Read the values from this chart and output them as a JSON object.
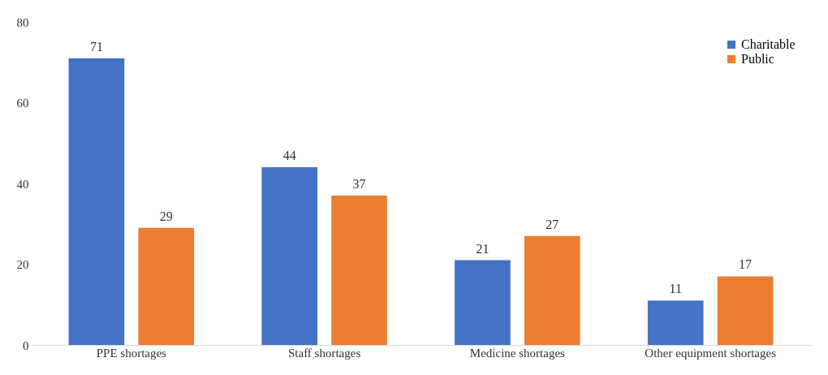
{
  "chart_data": {
    "type": "bar",
    "categories": [
      "PPE shortages",
      "Staff shortages",
      "Medicine shortages",
      "Other equipment shortages"
    ],
    "series": [
      {
        "name": "Charitable",
        "color": "#4472c4",
        "values": [
          71,
          44,
          21,
          11
        ]
      },
      {
        "name": "Public",
        "color": "#ed7d31",
        "values": [
          29,
          37,
          27,
          17
        ]
      }
    ],
    "ylim": [
      0,
      80
    ],
    "yticks": [
      0,
      20,
      40,
      60,
      80
    ],
    "grid": false,
    "legend": "top right",
    "data_labels": true
  }
}
